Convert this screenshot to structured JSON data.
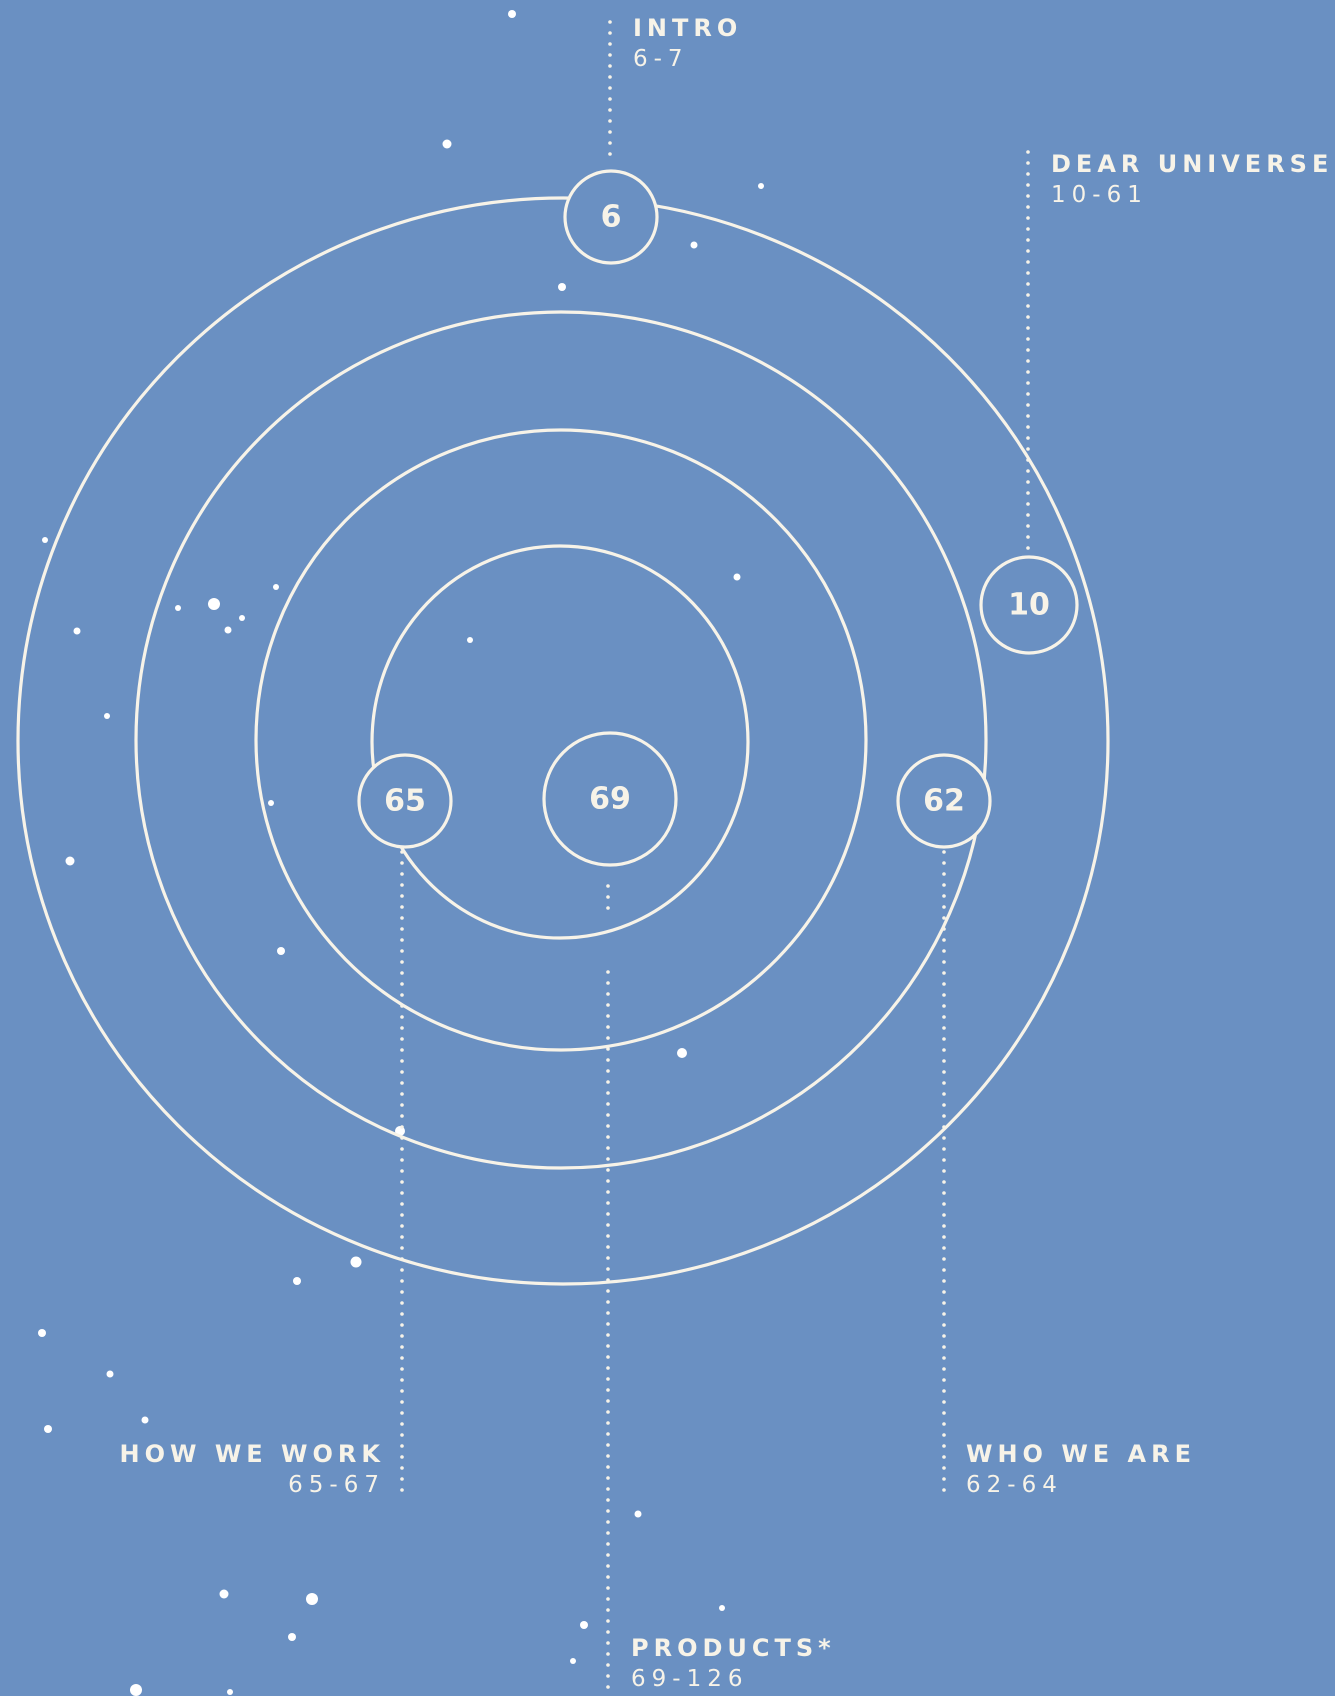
{
  "palette": {
    "background": "#6a90c2",
    "line": "#f7f3e8"
  },
  "center": {
    "number": "69"
  },
  "nodes": [
    {
      "id": "intro",
      "number": "6"
    },
    {
      "id": "dear-universe",
      "number": "10"
    },
    {
      "id": "who-we-are",
      "number": "62"
    },
    {
      "id": "how-we-work",
      "number": "65"
    }
  ],
  "labels": {
    "intro": {
      "title": "INTRO",
      "pages": "6-7"
    },
    "dear_universe": {
      "title": "DEAR UNIVERSE",
      "pages": "10-61"
    },
    "how_we_work": {
      "title": "HOW WE WORK",
      "pages": "65-67"
    },
    "who_we_are": {
      "title": "WHO WE ARE",
      "pages": "62-64"
    },
    "products": {
      "title": "PRODUCTS*",
      "pages": "69-126"
    }
  }
}
